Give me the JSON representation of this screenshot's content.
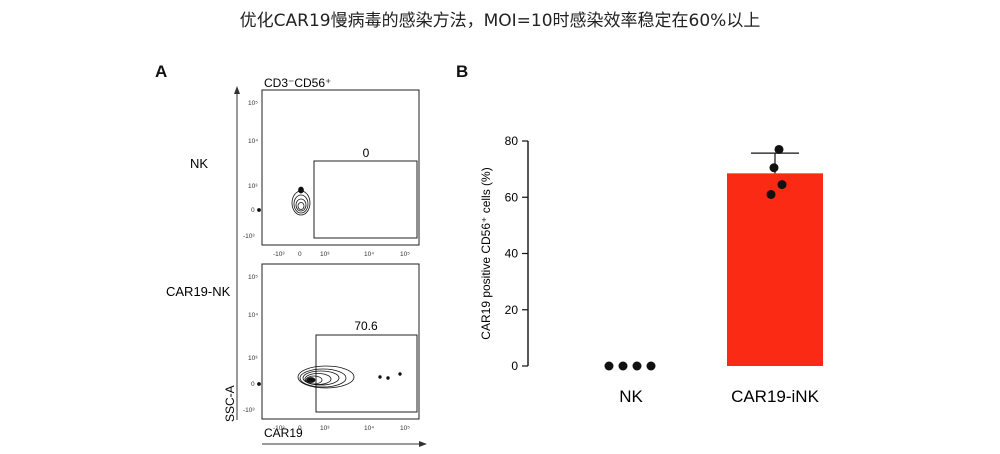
{
  "title": "优化CAR19慢病毒的感染方法，MOI=10时感染效率稳定在60%以上",
  "panel_a": {
    "letter": "A",
    "gate_label": "CD3⁻CD56⁺",
    "row_labels": [
      "NK",
      "CAR19-NK"
    ],
    "gate_values": [
      "0",
      "70.6"
    ],
    "y_axis_label": "SSC-A",
    "x_axis_label": "CAR19",
    "y_ticks": [
      "10⁵",
      "10⁴",
      "10³",
      "0",
      "-10³"
    ],
    "x_ticks": [
      "-10³",
      "0",
      "10³",
      "10⁴",
      "10⁵"
    ]
  },
  "panel_b": {
    "letter": "B"
  },
  "chart_data": {
    "type": "bar",
    "categories": [
      "NK",
      "CAR19-iNK"
    ],
    "values": [
      0,
      68.5
    ],
    "error": [
      0,
      7.2
    ],
    "points": [
      [
        0,
        0,
        0,
        0
      ],
      [
        77,
        70.5,
        64.5,
        61
      ]
    ],
    "bar_colors": [
      "#ffffff",
      "#fb2a14"
    ],
    "ylabel": "CAR19 positive CD56⁺ cells (%)",
    "xlabel": "",
    "ylim": [
      0,
      80
    ],
    "yticks": [
      0,
      20,
      40,
      60,
      80
    ],
    "grid": false
  }
}
